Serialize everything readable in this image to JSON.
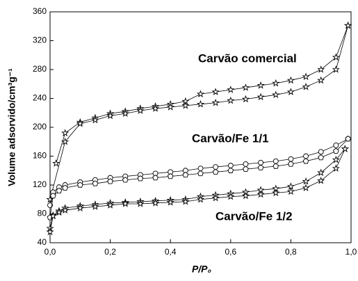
{
  "chart_data": {
    "type": "line",
    "xlabel": "P/P₀",
    "ylabel": "Volume adsorvido/cm³g⁻¹",
    "xlim": [
      0,
      1
    ],
    "ylim": [
      40,
      360
    ],
    "xticks": [
      {
        "value": 0,
        "label": "0,0"
      },
      {
        "value": 0.2,
        "label": "0,2"
      },
      {
        "value": 0.4,
        "label": "0,4"
      },
      {
        "value": 0.6,
        "label": "0,6"
      },
      {
        "value": 0.8,
        "label": "0,8"
      },
      {
        "value": 1,
        "label": "1,0"
      }
    ],
    "yticks": [
      40,
      80,
      120,
      160,
      200,
      240,
      280,
      320,
      360
    ],
    "annotations": [
      "Carvão comercial",
      "Carvão/Fe 1/1",
      "Carvão/Fe 1/2"
    ],
    "series": [
      {
        "color": "#000000",
        "marker": "star",
        "x": [
          0.02,
          0.05,
          0.1,
          0.15,
          0.2,
          0.25,
          0.3,
          0.35,
          0.4,
          0.45,
          0.5,
          0.55,
          0.6,
          0.65,
          0.7,
          0.75,
          0.8,
          0.85,
          0.9,
          0.95,
          0.99
        ],
        "values": [
          150,
          192,
          207,
          213,
          219,
          222,
          226,
          229,
          232,
          236,
          246,
          249,
          252,
          255,
          258,
          261,
          265,
          270,
          280,
          297,
          341
        ]
      },
      {
        "color": "#000000",
        "marker": "star",
        "x": [
          0.0,
          0.05,
          0.1,
          0.15,
          0.2,
          0.25,
          0.3,
          0.35,
          0.4,
          0.45,
          0.5,
          0.55,
          0.6,
          0.65,
          0.7,
          0.75,
          0.8,
          0.85,
          0.9,
          0.95,
          0.99
        ],
        "values": [
          100,
          180,
          205,
          210,
          216,
          219,
          223,
          226,
          228,
          230,
          232,
          234,
          237,
          239,
          242,
          245,
          249,
          256,
          265,
          280,
          341
        ]
      },
      {
        "color": "#000000",
        "marker": "circle",
        "x": [
          0.0,
          0.01,
          0.03,
          0.05,
          0.1,
          0.15,
          0.2,
          0.25,
          0.3,
          0.35,
          0.4,
          0.45,
          0.5,
          0.55,
          0.6,
          0.65,
          0.7,
          0.75,
          0.8,
          0.85,
          0.9,
          0.95,
          0.99
        ],
        "values": [
          92,
          110,
          117,
          120,
          124,
          127,
          130,
          132,
          134,
          136,
          138,
          140,
          143,
          145,
          147,
          149,
          151,
          153,
          156,
          160,
          166,
          175,
          184
        ]
      },
      {
        "color": "#000000",
        "marker": "pentagon",
        "x": [
          0.0,
          0.01,
          0.03,
          0.05,
          0.1,
          0.15,
          0.2,
          0.25,
          0.3,
          0.35,
          0.4,
          0.45,
          0.5,
          0.55,
          0.6,
          0.65,
          0.7,
          0.75,
          0.8,
          0.85,
          0.9,
          0.95,
          0.99
        ],
        "values": [
          75,
          105,
          112,
          116,
          120,
          122,
          125,
          127,
          129,
          130,
          132,
          134,
          136,
          138,
          140,
          142,
          144,
          146,
          149,
          153,
          158,
          167,
          184
        ]
      },
      {
        "color": "#000000",
        "marker": "star",
        "x": [
          0.0,
          0.01,
          0.03,
          0.05,
          0.1,
          0.15,
          0.2,
          0.25,
          0.3,
          0.35,
          0.4,
          0.45,
          0.5,
          0.55,
          0.6,
          0.65,
          0.7,
          0.75,
          0.8,
          0.85,
          0.9,
          0.95,
          0.98
        ],
        "values": [
          60,
          78,
          84,
          88,
          91,
          93,
          95,
          96,
          97,
          98,
          99,
          100,
          104,
          106,
          108,
          110,
          113,
          115,
          118,
          125,
          137,
          155,
          170
        ]
      },
      {
        "color": "#000000",
        "marker": "star",
        "x": [
          0.0,
          0.01,
          0.03,
          0.05,
          0.1,
          0.15,
          0.2,
          0.25,
          0.3,
          0.35,
          0.4,
          0.45,
          0.5,
          0.55,
          0.6,
          0.65,
          0.7,
          0.75,
          0.8,
          0.85,
          0.9,
          0.95,
          0.98
        ],
        "values": [
          55,
          77,
          82,
          85,
          88,
          90,
          92,
          94,
          94,
          95,
          96,
          97,
          100,
          102,
          104,
          105,
          107,
          109,
          111,
          116,
          126,
          143,
          170
        ]
      }
    ]
  }
}
